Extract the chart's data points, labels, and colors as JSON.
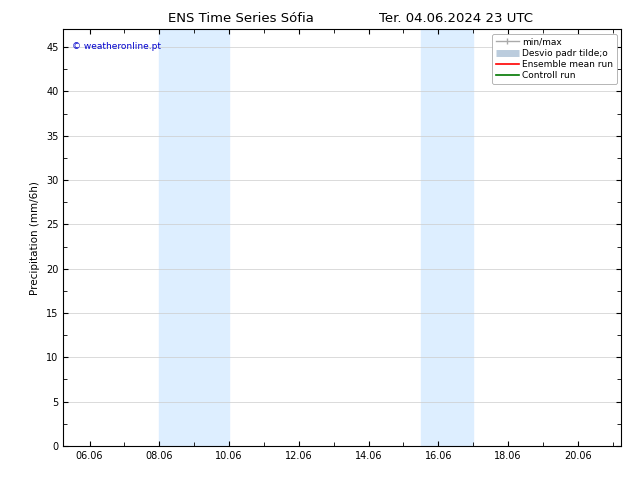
{
  "title_left": "ENS Time Series Sófia",
  "title_right": "Ter. 04.06.2024 23 UTC",
  "ylabel": "Precipitation (mm/6h)",
  "watermark": "© weatheronline.pt",
  "watermark_color": "#0000cc",
  "ylim": [
    0,
    47
  ],
  "yticks": [
    0,
    5,
    10,
    15,
    20,
    25,
    30,
    35,
    40,
    45
  ],
  "xlim_start": 5.25,
  "xlim_end": 21.25,
  "xtick_labels": [
    "06.06",
    "08.06",
    "10.06",
    "12.06",
    "14.06",
    "16.06",
    "18.06",
    "20.06"
  ],
  "xtick_positions": [
    6.0,
    8.0,
    10.0,
    12.0,
    14.0,
    16.0,
    18.0,
    20.0
  ],
  "shaded_bands": [
    {
      "x_start": 8.0,
      "x_end": 10.0
    },
    {
      "x_start": 15.5,
      "x_end": 17.0
    }
  ],
  "shaded_color": "#ddeeff",
  "legend_labels": [
    "min/max",
    "Desvio padr tilde;o",
    "Ensemble mean run",
    "Controll run"
  ],
  "legend_colors": [
    "#aaaaaa",
    "#bbccdd",
    "#ff0000",
    "#007700"
  ],
  "bg_color": "#ffffff",
  "plot_bg_color": "#ffffff",
  "grid_color": "#cccccc",
  "title_fontsize": 9.5,
  "label_fontsize": 7.5,
  "tick_fontsize": 7,
  "legend_fontsize": 6.5,
  "watermark_fontsize": 6.5
}
